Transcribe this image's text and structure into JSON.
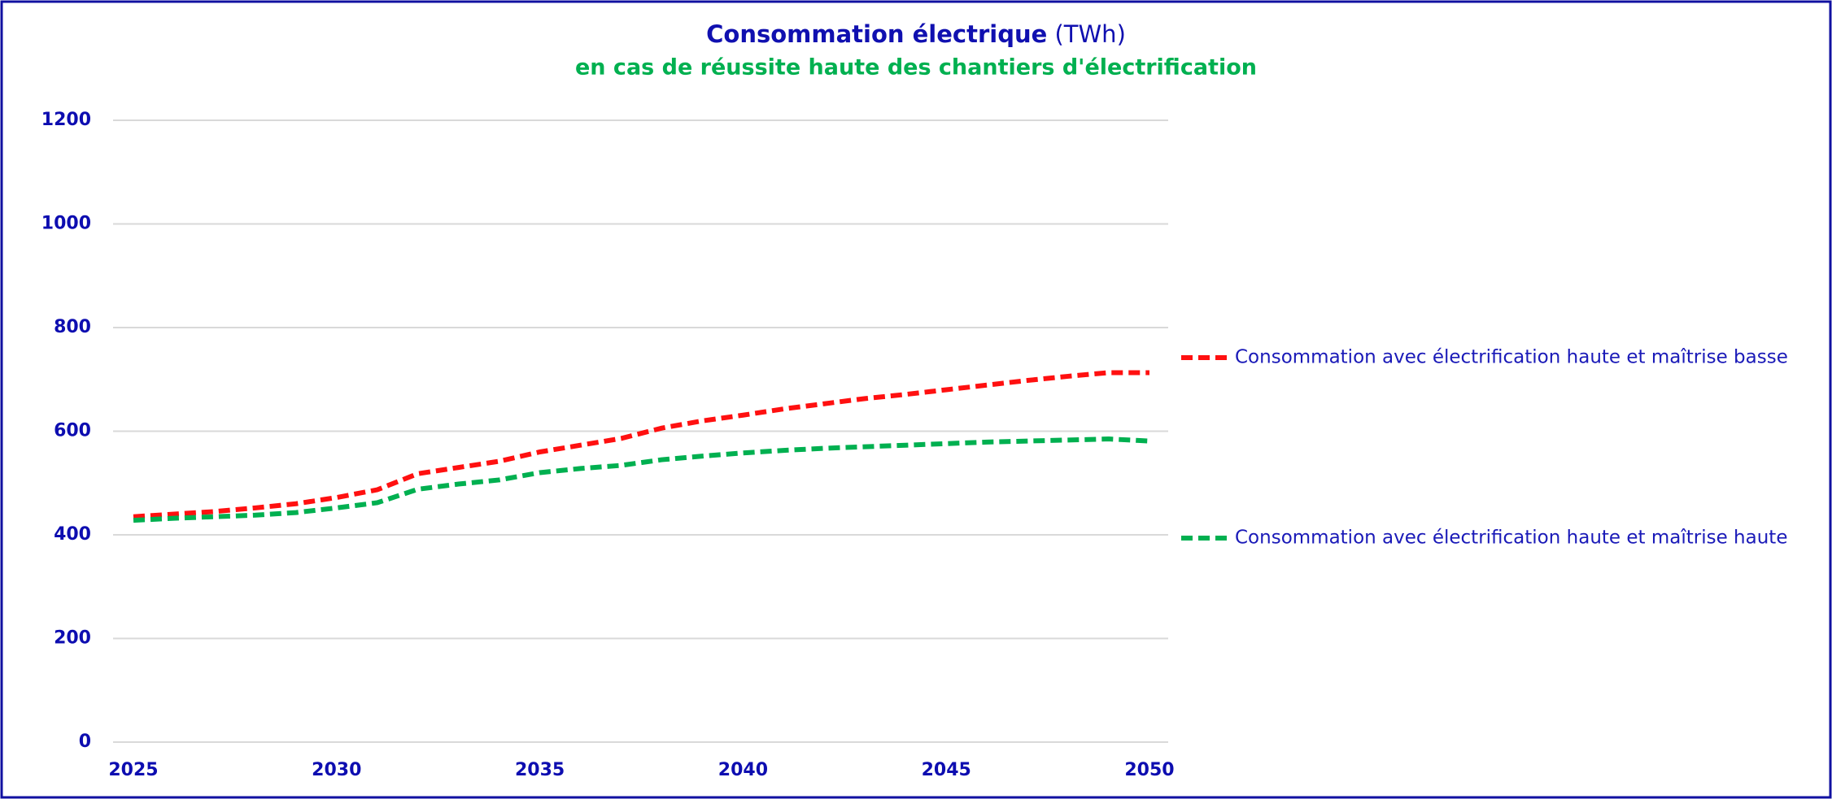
{
  "chart_data": {
    "type": "line",
    "title": "Consommation électrique",
    "title_unit": "(TWh)",
    "subtitle": "en cas de réussite haute des chantiers d'électrification",
    "x": [
      2025,
      2026,
      2027,
      2028,
      2029,
      2030,
      2031,
      2032,
      2033,
      2034,
      2035,
      2036,
      2037,
      2038,
      2039,
      2040,
      2041,
      2042,
      2043,
      2044,
      2045,
      2046,
      2047,
      2048,
      2049,
      2050
    ],
    "series": [
      {
        "name": "Consommation avec électrification haute et maîtrise basse",
        "color": "#ff1010",
        "values": [
          435,
          440,
          445,
          452,
          460,
          472,
          487,
          518,
          530,
          542,
          560,
          573,
          586,
          606,
          620,
          631,
          643,
          653,
          663,
          671,
          680,
          689,
          698,
          706,
          713,
          713
        ]
      },
      {
        "name": "Consommation avec électrification haute et maîtrise haute",
        "color": "#00b050",
        "values": [
          428,
          432,
          435,
          438,
          443,
          452,
          462,
          488,
          498,
          506,
          520,
          528,
          534,
          545,
          552,
          558,
          563,
          567,
          570,
          573,
          576,
          579,
          581,
          583,
          585,
          581
        ]
      }
    ],
    "xlim": [
      2025,
      2050
    ],
    "xticks": [
      2025,
      2030,
      2035,
      2040,
      2045,
      2050
    ],
    "ylim": [
      0,
      1200
    ],
    "yticks": [
      0,
      200,
      400,
      600,
      800,
      1000,
      1200
    ],
    "grid": true,
    "legend": "right",
    "line_style": "dashed"
  }
}
